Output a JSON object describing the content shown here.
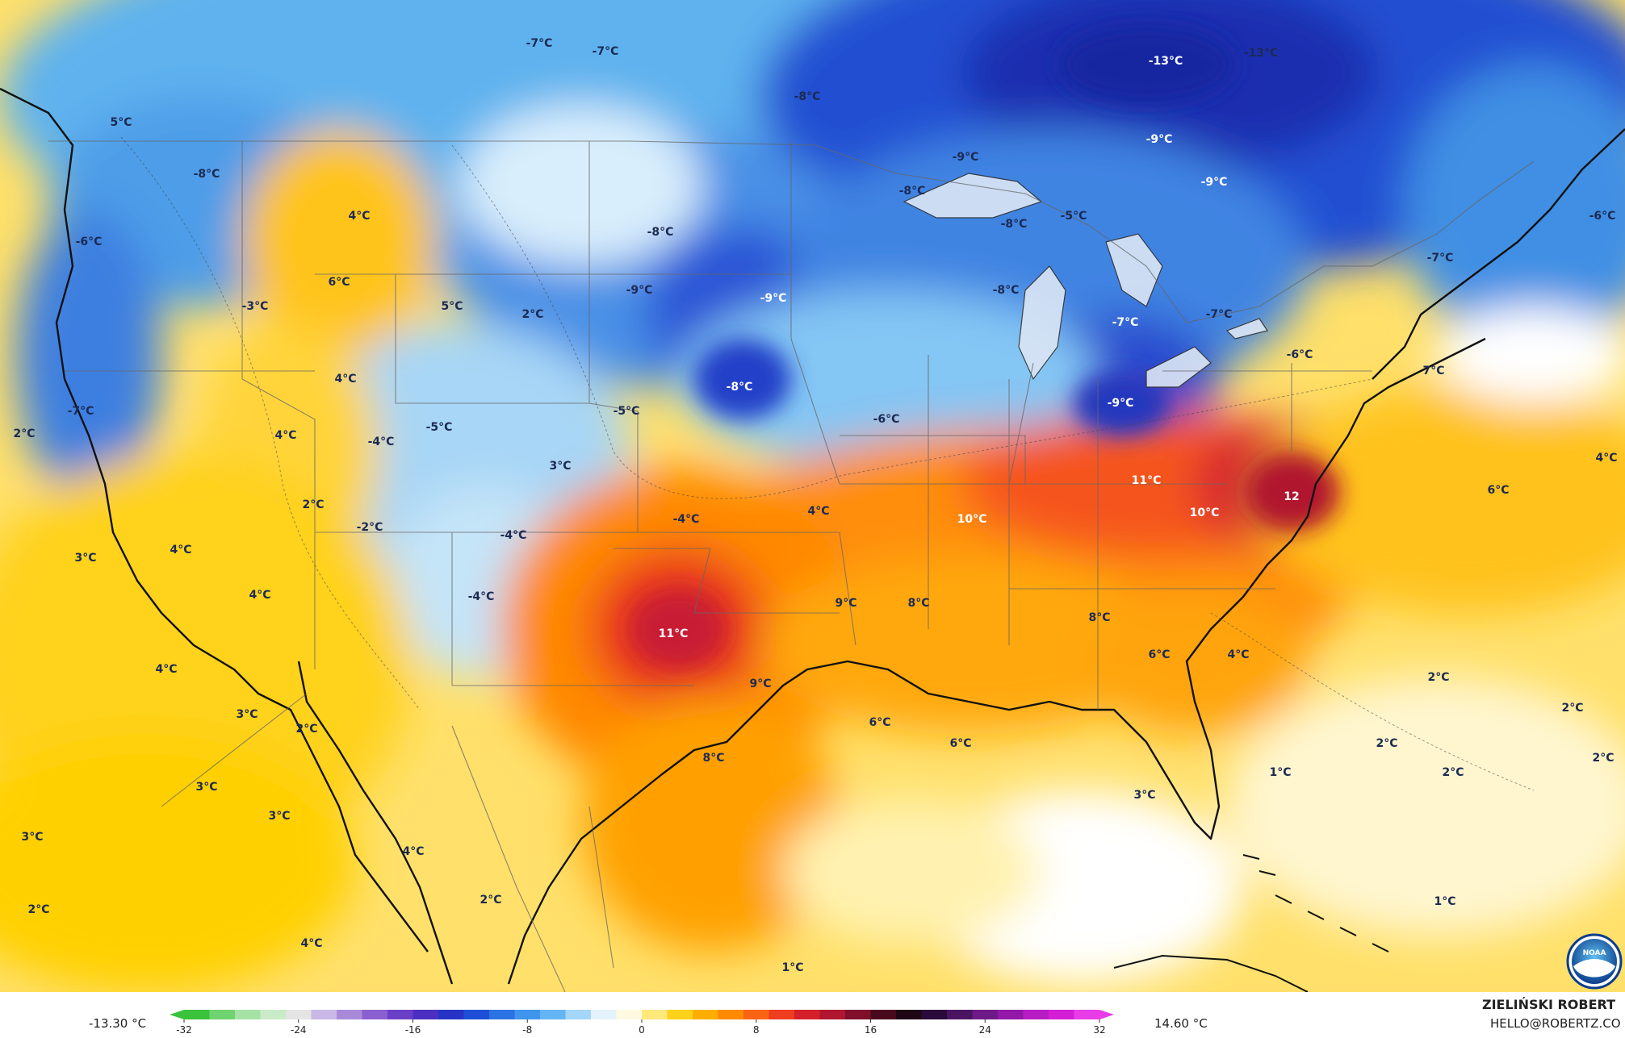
{
  "map": {
    "labels": [
      {
        "t": "-7°C"
      },
      {
        "t": "-7°C"
      },
      {
        "t": "-8°C"
      },
      {
        "t": "-13°C"
      },
      {
        "t": "-13°C"
      },
      {
        "t": "5°C"
      },
      {
        "t": "-8°C"
      },
      {
        "t": "-9°C"
      },
      {
        "t": "-9°C"
      },
      {
        "t": "-8°C"
      },
      {
        "t": "-9°C"
      },
      {
        "t": "4°C"
      },
      {
        "t": "-8°C"
      },
      {
        "t": "-5°C"
      },
      {
        "t": "-6°C"
      },
      {
        "t": "-6°C"
      },
      {
        "t": "-8°C"
      },
      {
        "t": "-7°C"
      },
      {
        "t": "6°C"
      },
      {
        "t": "-3°C"
      },
      {
        "t": "5°C"
      },
      {
        "t": "2°C"
      },
      {
        "t": "-9°C"
      },
      {
        "t": "-9°C"
      },
      {
        "t": "-8°C"
      },
      {
        "t": "-7°C"
      },
      {
        "t": "-7°C"
      },
      {
        "t": "-6°C"
      },
      {
        "t": "4°C"
      },
      {
        "t": "-8°C"
      },
      {
        "t": "7°C"
      },
      {
        "t": "-7°C"
      },
      {
        "t": "2°C"
      },
      {
        "t": "4°C"
      },
      {
        "t": "-5°C"
      },
      {
        "t": "-4°C"
      },
      {
        "t": "-5°C"
      },
      {
        "t": "-6°C"
      },
      {
        "t": "-9°C"
      },
      {
        "t": "4°C"
      },
      {
        "t": "3°C"
      },
      {
        "t": "11°C"
      },
      {
        "t": "6°C"
      },
      {
        "t": "2°C"
      },
      {
        "t": "-2°C"
      },
      {
        "t": "-4°C"
      },
      {
        "t": "-4°C"
      },
      {
        "t": "4°C"
      },
      {
        "t": "10°C"
      },
      {
        "t": "10°C"
      },
      {
        "t": "12"
      },
      {
        "t": "4°C"
      },
      {
        "t": "3°C"
      },
      {
        "t": "-4°C"
      },
      {
        "t": "4°C"
      },
      {
        "t": "9°C"
      },
      {
        "t": "8°C"
      },
      {
        "t": "8°C"
      },
      {
        "t": "11°C"
      },
      {
        "t": "4°C"
      },
      {
        "t": "6°C"
      },
      {
        "t": "4°C"
      },
      {
        "t": "2°C"
      },
      {
        "t": "2°C"
      },
      {
        "t": "3°C"
      },
      {
        "t": "2°C"
      },
      {
        "t": "9°C"
      },
      {
        "t": "6°C"
      },
      {
        "t": "6°C"
      },
      {
        "t": "2°C"
      },
      {
        "t": "2°C"
      },
      {
        "t": "1°C"
      },
      {
        "t": "2°C"
      },
      {
        "t": "8°C"
      },
      {
        "t": "3°C"
      },
      {
        "t": "3°C"
      },
      {
        "t": "3°C"
      },
      {
        "t": "3°C"
      },
      {
        "t": "4°C"
      },
      {
        "t": "2°C"
      },
      {
        "t": "1°C"
      },
      {
        "t": "2°C"
      },
      {
        "t": "4°C"
      },
      {
        "t": "1°C"
      }
    ]
  },
  "colorbar": {
    "min_value": "-13.30 °C",
    "max_value": "14.60 °C",
    "ticks": [
      "-32",
      "-24",
      "-16",
      "-8",
      "0",
      "8",
      "16",
      "24",
      "32"
    ],
    "tick_values": [
      -32,
      -24,
      -16,
      -8,
      0,
      8,
      16,
      24,
      32
    ],
    "range": [
      -32,
      32
    ],
    "colors": [
      "#3bc23b",
      "#6fd36f",
      "#a6e2a6",
      "#c8ecc8",
      "#e4e4e4",
      "#c9b8e6",
      "#a88ad9",
      "#8a5fd0",
      "#6a3fc8",
      "#4a2fc0",
      "#2633c6",
      "#1d4fd6",
      "#2b73e2",
      "#3f95ec",
      "#63b5f3",
      "#a3d6f8",
      "#e3f2fc",
      "#fff9e0",
      "#ffe97a",
      "#ffd11a",
      "#ffae00",
      "#ff8a00",
      "#f96414",
      "#ee3d1f",
      "#d4202a",
      "#b0162f",
      "#7f0f2a",
      "#4a0a1e",
      "#1e0614",
      "#2a0a3a",
      "#4a1460",
      "#6e1a88",
      "#9318a8",
      "#b81cc4",
      "#d41ed6",
      "#e83ce6"
    ]
  },
  "credit": {
    "name": "ZIELIŃSKI ROBERT",
    "email": "HELLO@ROBERTZ.CO"
  },
  "logo": {
    "text": "NOAA"
  }
}
